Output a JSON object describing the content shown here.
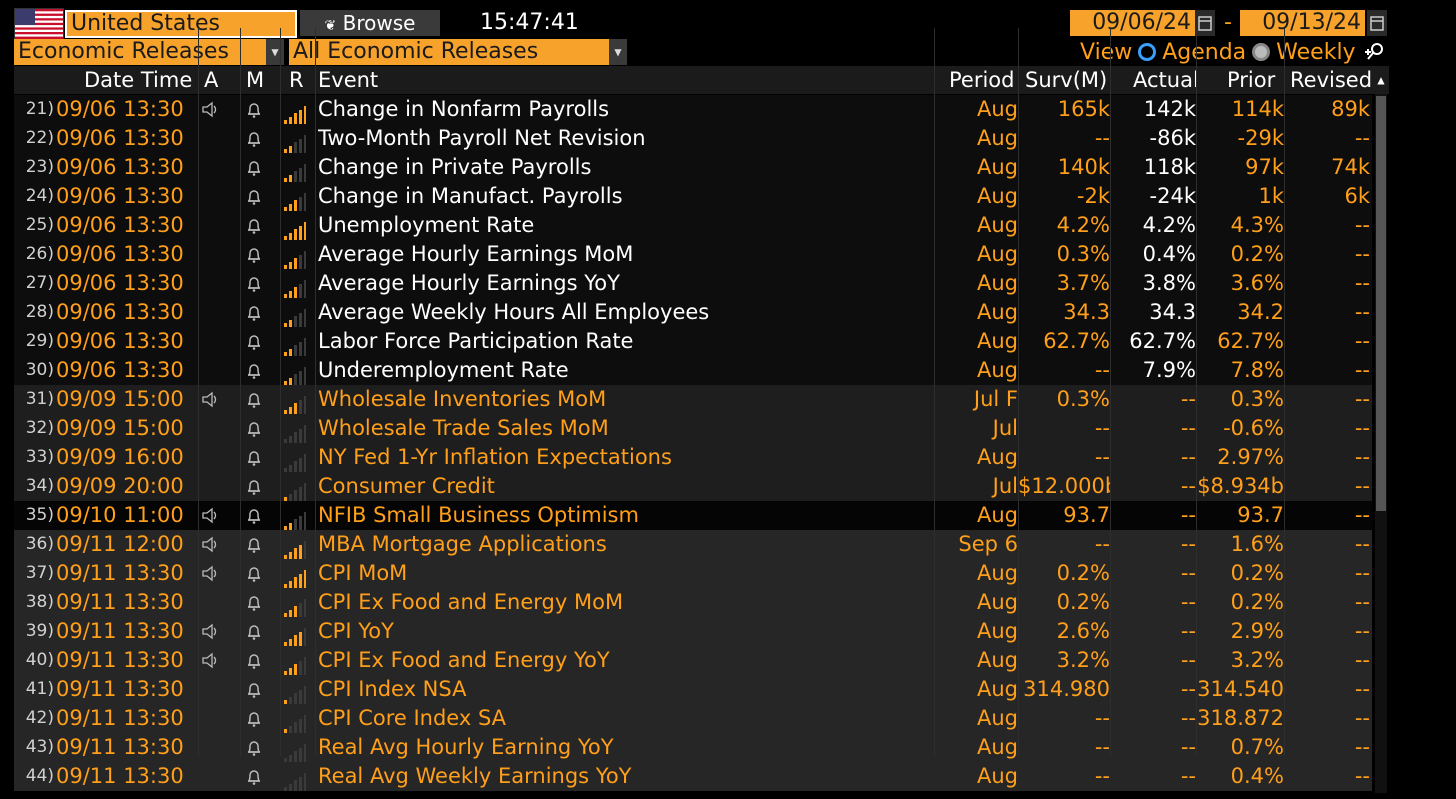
{
  "header": {
    "country": "United States",
    "browse_label": "Browse",
    "time": "15:47:41",
    "date_from": "09/06/24",
    "date_to": "09/13/24",
    "date_separator": "-",
    "source": "Economic Releases",
    "filter": "All Economic Releases",
    "view_label": "View",
    "view_agenda": "Agenda",
    "view_weekly": "Weekly",
    "view_selected": "Agenda"
  },
  "colors": {
    "accent": "#ff9f1a",
    "field_bg": "#f7a22a",
    "radio_selected": "#3aa0ff"
  },
  "columns": {
    "datetime": "Date Time",
    "a": "A",
    "m": "M",
    "r": "R",
    "event": "Event",
    "period": "Period",
    "survey": "Surv(M)",
    "actual": "Actual",
    "prior": "Prior",
    "revised": "Revised"
  },
  "rows": [
    {
      "idx": "21)",
      "datetime": "09/06 13:30",
      "alert": true,
      "relevance": 5,
      "event": "Change in Nonfarm Payrolls",
      "period": "Aug",
      "survey": "165k",
      "actual": "142k",
      "prior": "114k",
      "revised": "89k",
      "released": true
    },
    {
      "idx": "22)",
      "datetime": "09/06 13:30",
      "alert": false,
      "relevance": 2,
      "event": "Two-Month Payroll Net Revision",
      "period": "Aug",
      "survey": "--",
      "actual": "-86k",
      "prior": "-29k",
      "revised": "--",
      "released": true
    },
    {
      "idx": "23)",
      "datetime": "09/06 13:30",
      "alert": false,
      "relevance": 2,
      "event": "Change in Private Payrolls",
      "period": "Aug",
      "survey": "140k",
      "actual": "118k",
      "prior": "97k",
      "revised": "74k",
      "released": true
    },
    {
      "idx": "24)",
      "datetime": "09/06 13:30",
      "alert": false,
      "relevance": 3,
      "event": "Change in Manufact. Payrolls",
      "period": "Aug",
      "survey": "-2k",
      "actual": "-24k",
      "prior": "1k",
      "revised": "6k",
      "released": true
    },
    {
      "idx": "25)",
      "datetime": "09/06 13:30",
      "alert": false,
      "relevance": 5,
      "event": "Unemployment Rate",
      "period": "Aug",
      "survey": "4.2%",
      "actual": "4.2%",
      "prior": "4.3%",
      "revised": "--",
      "released": true
    },
    {
      "idx": "26)",
      "datetime": "09/06 13:30",
      "alert": false,
      "relevance": 3,
      "event": "Average Hourly Earnings MoM",
      "period": "Aug",
      "survey": "0.3%",
      "actual": "0.4%",
      "prior": "0.2%",
      "revised": "--",
      "released": true
    },
    {
      "idx": "27)",
      "datetime": "09/06 13:30",
      "alert": false,
      "relevance": 3,
      "event": "Average Hourly Earnings YoY",
      "period": "Aug",
      "survey": "3.7%",
      "actual": "3.8%",
      "prior": "3.6%",
      "revised": "--",
      "released": true
    },
    {
      "idx": "28)",
      "datetime": "09/06 13:30",
      "alert": false,
      "relevance": 2,
      "event": "Average Weekly Hours All Employees",
      "period": "Aug",
      "survey": "34.3",
      "actual": "34.3",
      "prior": "34.2",
      "revised": "--",
      "released": true
    },
    {
      "idx": "29)",
      "datetime": "09/06 13:30",
      "alert": false,
      "relevance": 2,
      "event": "Labor Force Participation Rate",
      "period": "Aug",
      "survey": "62.7%",
      "actual": "62.7%",
      "prior": "62.7%",
      "revised": "--",
      "released": true
    },
    {
      "idx": "30)",
      "datetime": "09/06 13:30",
      "alert": false,
      "relevance": 2,
      "event": "Underemployment Rate",
      "period": "Aug",
      "survey": "--",
      "actual": "7.9%",
      "prior": "7.8%",
      "revised": "--",
      "released": true
    },
    {
      "idx": "31)",
      "datetime": "09/09 15:00",
      "alert": true,
      "relevance": 3,
      "event": "Wholesale Inventories MoM",
      "period": "Jul F",
      "survey": "0.3%",
      "actual": "--",
      "prior": "0.3%",
      "revised": "--",
      "released": false
    },
    {
      "idx": "32)",
      "datetime": "09/09 15:00",
      "alert": false,
      "relevance": 0,
      "event": "Wholesale Trade Sales MoM",
      "period": "Jul",
      "survey": "--",
      "actual": "--",
      "prior": "-0.6%",
      "revised": "--",
      "released": false
    },
    {
      "idx": "33)",
      "datetime": "09/09 16:00",
      "alert": false,
      "relevance": 0,
      "event": "NY Fed 1-Yr Inflation Expectations",
      "period": "Aug",
      "survey": "--",
      "actual": "--",
      "prior": "2.97%",
      "revised": "--",
      "released": false
    },
    {
      "idx": "34)",
      "datetime": "09/09 20:00",
      "alert": false,
      "relevance": 1,
      "event": "Consumer Credit",
      "period": "Jul",
      "survey": "$12.000b",
      "actual": "--",
      "prior": "$8.934b",
      "revised": "--",
      "released": false
    },
    {
      "idx": "35)",
      "datetime": "09/10 11:00",
      "alert": true,
      "relevance": 2,
      "event": "NFIB Small Business Optimism",
      "period": "Aug",
      "survey": "93.7",
      "actual": "--",
      "prior": "93.7",
      "revised": "--",
      "released": false
    },
    {
      "idx": "36)",
      "datetime": "09/11 12:00",
      "alert": true,
      "relevance": 4,
      "event": "MBA Mortgage Applications",
      "period": "Sep 6",
      "survey": "--",
      "actual": "--",
      "prior": "1.6%",
      "revised": "--",
      "released": false
    },
    {
      "idx": "37)",
      "datetime": "09/11 13:30",
      "alert": true,
      "relevance": 5,
      "event": "CPI MoM",
      "period": "Aug",
      "survey": "0.2%",
      "actual": "--",
      "prior": "0.2%",
      "revised": "--",
      "released": false
    },
    {
      "idx": "38)",
      "datetime": "09/11 13:30",
      "alert": false,
      "relevance": 3,
      "event": "CPI Ex Food and Energy MoM",
      "period": "Aug",
      "survey": "0.2%",
      "actual": "--",
      "prior": "0.2%",
      "revised": "--",
      "released": false
    },
    {
      "idx": "39)",
      "datetime": "09/11 13:30",
      "alert": true,
      "relevance": 4,
      "event": "CPI YoY",
      "period": "Aug",
      "survey": "2.6%",
      "actual": "--",
      "prior": "2.9%",
      "revised": "--",
      "released": false
    },
    {
      "idx": "40)",
      "datetime": "09/11 13:30",
      "alert": true,
      "relevance": 3,
      "event": "CPI Ex Food and Energy YoY",
      "period": "Aug",
      "survey": "3.2%",
      "actual": "--",
      "prior": "3.2%",
      "revised": "--",
      "released": false
    },
    {
      "idx": "41)",
      "datetime": "09/11 13:30",
      "alert": false,
      "relevance": 1,
      "event": "CPI Index NSA",
      "period": "Aug",
      "survey": "314.980",
      "actual": "--",
      "prior": "314.540",
      "revised": "--",
      "released": false
    },
    {
      "idx": "42)",
      "datetime": "09/11 13:30",
      "alert": false,
      "relevance": 1,
      "event": "CPI Core Index SA",
      "period": "Aug",
      "survey": "--",
      "actual": "--",
      "prior": "318.872",
      "revised": "--",
      "released": false
    },
    {
      "idx": "43)",
      "datetime": "09/11 13:30",
      "alert": false,
      "relevance": 0,
      "event": "Real Avg Hourly Earning YoY",
      "period": "Aug",
      "survey": "--",
      "actual": "--",
      "prior": "0.7%",
      "revised": "--",
      "released": false
    },
    {
      "idx": "44)",
      "datetime": "09/11 13:30",
      "alert": false,
      "relevance": 0,
      "event": "Real Avg Weekly Earnings YoY",
      "period": "Aug",
      "survey": "--",
      "actual": "--",
      "prior": "0.4%",
      "revised": "--",
      "released": false
    }
  ]
}
